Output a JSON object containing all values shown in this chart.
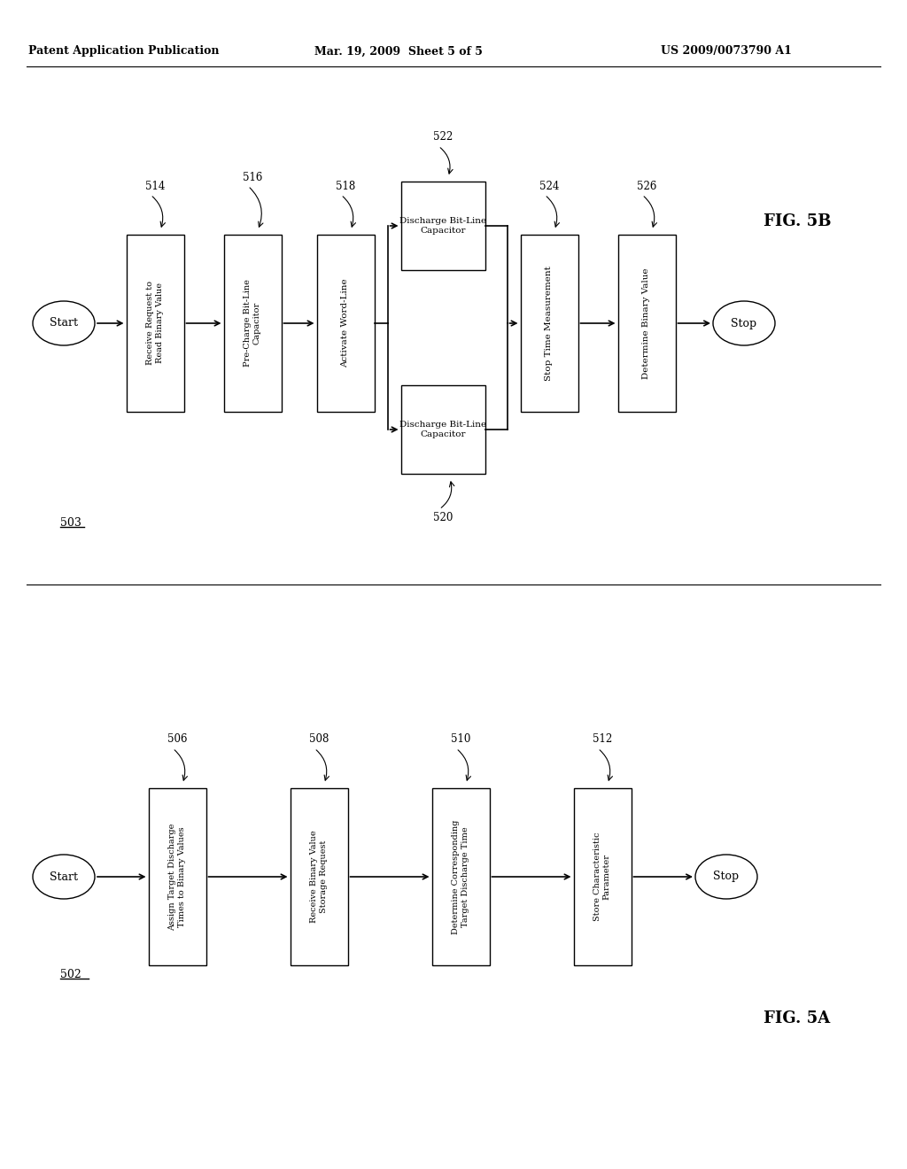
{
  "header_left": "Patent Application Publication",
  "header_mid": "Mar. 19, 2009  Sheet 5 of 5",
  "header_right": "US 2009/0073790 A1",
  "fig5b_label": "FIG. 5B",
  "fig5a_label": "FIG. 5A",
  "fig5b_ref": "503",
  "fig5a_ref": "502",
  "bg_color": "white",
  "line_color": "black",
  "font_color": "black"
}
